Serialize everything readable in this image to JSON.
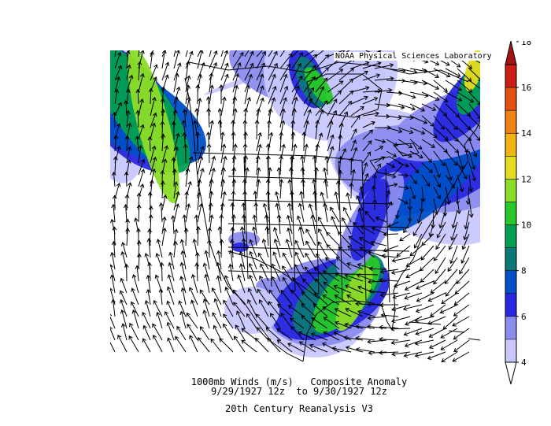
{
  "credit": "NOAA Physical Sciences Laboratory",
  "caption": {
    "line1": "1000mb Winds (m/s)   Composite Anomaly",
    "line2": "9/29/1927 12z  to 9/30/1927 12z",
    "line3": "20th Century Reanalysis V3"
  },
  "colorbar": {
    "labels": [
      "4",
      "6",
      "8",
      "10",
      "12",
      "14",
      "16",
      "18"
    ],
    "colors": [
      "#c8c8ff",
      "#8c8cf0",
      "#2828e0",
      "#0050c8",
      "#0a7878",
      "#00a050",
      "#28c828",
      "#8cdc28",
      "#e6dc1e",
      "#f0b414",
      "#f08214",
      "#e65014",
      "#c81e14"
    ],
    "below_color": "#ffffff",
    "above_color": "#a01414"
  },
  "map": {
    "region": "North America",
    "variable": "1000mb wind vector anomaly"
  }
}
